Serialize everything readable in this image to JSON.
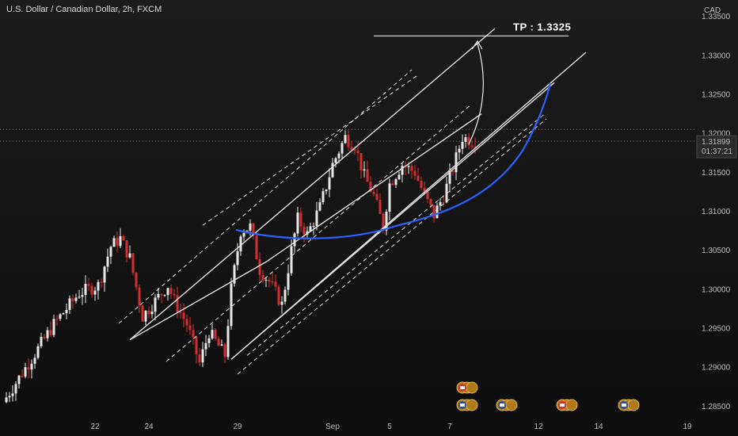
{
  "header": {
    "symbol_title": "U.S. Dollar / Canadian Dollar, 2h, FXCM",
    "currency": "CAD"
  },
  "annotation": {
    "tp_label": "TP : 1.3325"
  },
  "current_price": {
    "price": "1.31899",
    "countdown": "01:37:21"
  },
  "colors": {
    "background": "#121212",
    "up_candle": "#e8e8e8",
    "down_candle": "#d32f2f",
    "channel_line": "#e0e0e0",
    "curve": "#2962ff",
    "price_label_bg": "#2a2a2a"
  },
  "events": [
    {
      "date_index": 144.0,
      "row": 1,
      "flag": "CA"
    },
    {
      "date_index": 144.0,
      "row": 0,
      "flag": "US"
    },
    {
      "date_index": 156.5,
      "row": 0,
      "flag": "US"
    },
    {
      "date_index": 175.5,
      "row": 0,
      "flag": "CA"
    },
    {
      "date_index": 195.0,
      "row": 0,
      "flag": "US"
    }
  ],
  "chart_data": {
    "type": "candlestick",
    "title": "U.S. Dollar / Canadian Dollar, 2h, FXCM",
    "y_axis": {
      "min": 1.2835,
      "max": 1.3365,
      "ticks": [
        "1.33500",
        "1.33000",
        "1.32500",
        "1.32000",
        "1.31500",
        "1.31000",
        "1.30500",
        "1.30000",
        "1.29500",
        "1.29000",
        "1.28500"
      ],
      "tick_values": [
        1.335,
        1.33,
        1.325,
        1.32,
        1.315,
        1.31,
        1.305,
        1.3,
        1.295,
        1.29,
        1.285
      ]
    },
    "x_axis": {
      "labels": [
        "22",
        "24",
        "29",
        "Sep",
        "5",
        "7",
        "12",
        "14",
        "19"
      ],
      "label_bar_index": [
        28,
        45,
        73,
        103,
        121,
        140,
        168,
        187,
        215
      ]
    },
    "grid": false,
    "reference_lines": [
      {
        "value": 1.3205,
        "style": "dotted"
      },
      {
        "value": 1.31899,
        "style": "dotted"
      }
    ],
    "price_path": [
      [
        0,
        1.2855
      ],
      [
        8,
        1.2905
      ],
      [
        16,
        1.2955
      ],
      [
        24,
        1.2995
      ],
      [
        30,
        1.3005
      ],
      [
        34,
        1.3055
      ],
      [
        37,
        1.3065
      ],
      [
        40,
        1.304
      ],
      [
        44,
        1.2965
      ],
      [
        48,
        1.2985
      ],
      [
        52,
        1.3005
      ],
      [
        54,
        1.2985
      ],
      [
        58,
        1.2955
      ],
      [
        62,
        1.2905
      ],
      [
        65,
        1.2945
      ],
      [
        70,
        1.2915
      ],
      [
        72,
        1.3
      ],
      [
        75,
        1.3075
      ],
      [
        78,
        1.308
      ],
      [
        81,
        1.3025
      ],
      [
        84,
        1.301
      ],
      [
        88,
        1.298
      ],
      [
        91,
        1.305
      ],
      [
        93,
        1.309
      ],
      [
        96,
        1.307
      ],
      [
        100,
        1.3105
      ],
      [
        104,
        1.316
      ],
      [
        108,
        1.3195
      ],
      [
        111,
        1.3185
      ],
      [
        114,
        1.3145
      ],
      [
        117,
        1.312
      ],
      [
        120,
        1.308
      ],
      [
        122,
        1.3135
      ],
      [
        126,
        1.316
      ],
      [
        130,
        1.315
      ],
      [
        133,
        1.312
      ],
      [
        136,
        1.3095
      ],
      [
        139,
        1.312
      ],
      [
        142,
        1.3155
      ],
      [
        145,
        1.3195
      ],
      [
        148,
        1.319
      ]
    ],
    "channel_lines": [
      {
        "style": "solid",
        "points": [
          [
            1.2935,
            39
          ],
          [
            1.3035,
            82
          ],
          [
            1.3225,
            150
          ]
        ]
      },
      {
        "style": "dashed",
        "points": [
          [
            1.3082,
            62
          ],
          [
            1.3275,
            130
          ]
        ]
      },
      {
        "style": "solid",
        "points": [
          [
            1.291,
            71
          ],
          [
            1.3265,
            173
          ]
        ]
      },
      {
        "style": "dashed",
        "points": [
          [
            1.2915,
            76
          ],
          [
            1.3225,
            170
          ]
        ]
      }
    ],
    "projection": {
      "type": "arrow",
      "target": 1.3325
    },
    "curve": {
      "type": "cup",
      "color": "#2962ff",
      "low": 1.3068,
      "high": 1.3268
    }
  }
}
